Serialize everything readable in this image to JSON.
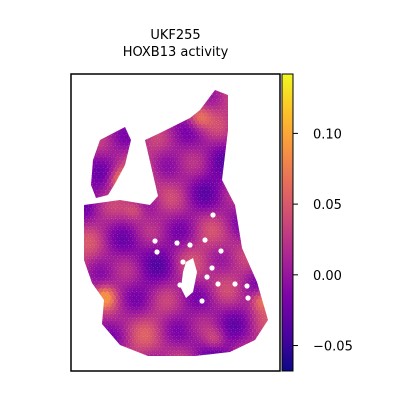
{
  "chart_data": {
    "type": "heatmap",
    "title_lines": [
      "UKF255",
      "HOXB13 activity"
    ],
    "xlabel": "",
    "ylabel": "",
    "colormap": "plasma",
    "colorbar": {
      "vmin": -0.068,
      "vmax": 0.142,
      "ticks": [
        -0.05,
        0.0,
        0.05,
        0.1
      ],
      "tick_labels": [
        "−0.05",
        "0.00",
        "0.05",
        "0.10"
      ]
    },
    "spot_value_range": [
      -0.05,
      0.08
    ],
    "grid": false,
    "legend": "colorbar-right"
  }
}
